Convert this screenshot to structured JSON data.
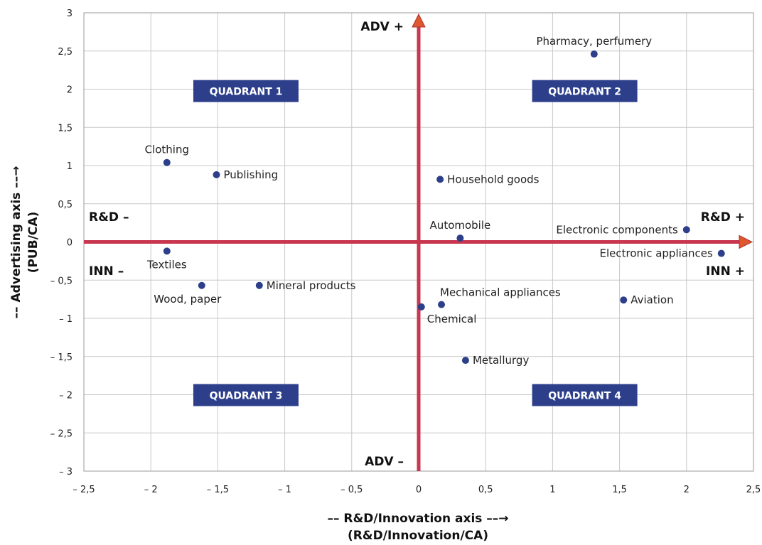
{
  "chart_data": {
    "type": "scatter",
    "xlabel": "–– R&D/Innovation axis ––→",
    "xlabel_sub": "(R&D/Innovation/CA)",
    "ylabel": "–– Advertising axis ––→",
    "ylabel_sub": "(PUB/CA)",
    "xlim": [
      -2.5,
      2.5
    ],
    "ylim": [
      -3,
      3
    ],
    "grid": true,
    "x_ticks": [
      {
        "v": -2.5,
        "label": "– 2,5"
      },
      {
        "v": -2,
        "label": "– 2"
      },
      {
        "v": -1.5,
        "label": "– 1,5"
      },
      {
        "v": -1,
        "label": "– 1"
      },
      {
        "v": -0.5,
        "label": "– 0,5"
      },
      {
        "v": 0,
        "label": "0"
      },
      {
        "v": 0.5,
        "label": "0,5"
      },
      {
        "v": 1,
        "label": "1"
      },
      {
        "v": 1.5,
        "label": "1,5"
      },
      {
        "v": 2,
        "label": "2"
      },
      {
        "v": 2.5,
        "label": "2,5"
      }
    ],
    "y_ticks": [
      {
        "v": 3,
        "label": "3"
      },
      {
        "v": 2.5,
        "label": "2,5"
      },
      {
        "v": 2,
        "label": "2"
      },
      {
        "v": 1.5,
        "label": "1,5"
      },
      {
        "v": 1,
        "label": "1"
      },
      {
        "v": 0.5,
        "label": "0,5"
      },
      {
        "v": 0,
        "label": "0"
      },
      {
        "v": -0.5,
        "label": "– 0,5"
      },
      {
        "v": -1,
        "label": "– 1"
      },
      {
        "v": -1.5,
        "label": "– 1,5"
      },
      {
        "v": -2,
        "label": "– 2"
      },
      {
        "v": -2.5,
        "label": "– 2,5"
      },
      {
        "v": -3,
        "label": "– 3"
      }
    ],
    "points": [
      {
        "label": "Pharmacy, perfumery",
        "x": 1.31,
        "y": 2.46,
        "pos": "above"
      },
      {
        "label": "Clothing",
        "x": -1.88,
        "y": 1.04,
        "pos": "above"
      },
      {
        "label": "Publishing",
        "x": -1.51,
        "y": 0.88,
        "pos": "right"
      },
      {
        "label": "Household goods",
        "x": 0.16,
        "y": 0.82,
        "pos": "right"
      },
      {
        "label": "Automobile",
        "x": 0.31,
        "y": 0.05,
        "pos": "above"
      },
      {
        "label": "Electronic components",
        "x": 2.0,
        "y": 0.16,
        "pos": "left"
      },
      {
        "label": "Electronic appliances",
        "x": 2.26,
        "y": -0.15,
        "pos": "left"
      },
      {
        "label": "Textiles",
        "x": -1.88,
        "y": -0.12,
        "pos": "below"
      },
      {
        "label": "Wood, paper",
        "x": -1.62,
        "y": -0.57,
        "pos": "below-left"
      },
      {
        "label": "Mineral products",
        "x": -1.19,
        "y": -0.57,
        "pos": "right"
      },
      {
        "label": "Mechanical appliances",
        "x": 0.17,
        "y": -0.82,
        "pos": "above-right"
      },
      {
        "label": "Chemical",
        "x": 0.02,
        "y": -0.85,
        "pos": "below-right"
      },
      {
        "label": "Aviation",
        "x": 1.53,
        "y": -0.76,
        "pos": "right"
      },
      {
        "label": "Metallurgy",
        "x": 0.35,
        "y": -1.55,
        "pos": "right"
      }
    ],
    "quadrants": [
      {
        "label": "QUADRANT 1",
        "x": -1.29,
        "y": 1.98
      },
      {
        "label": "QUADRANT 2",
        "x": 1.24,
        "y": 1.98
      },
      {
        "label": "QUADRANT 3",
        "x": -1.29,
        "y": -2.0
      },
      {
        "label": "QUADRANT 4",
        "x": 1.24,
        "y": -2.0
      }
    ],
    "axis_labels": {
      "adv_plus": "ADV +",
      "adv_minus": "ADV –",
      "rd_plus": "R&D +",
      "inn_plus": "INN +",
      "rd_minus": "R&D –",
      "inn_minus": "INN –"
    },
    "colors": {
      "point": "#2d3f8a",
      "quadrant_box": "#2d3f8a",
      "axis_line": "#c8374f",
      "arrow_head": "#e0572f",
      "grid": "#c8c8c8"
    }
  }
}
